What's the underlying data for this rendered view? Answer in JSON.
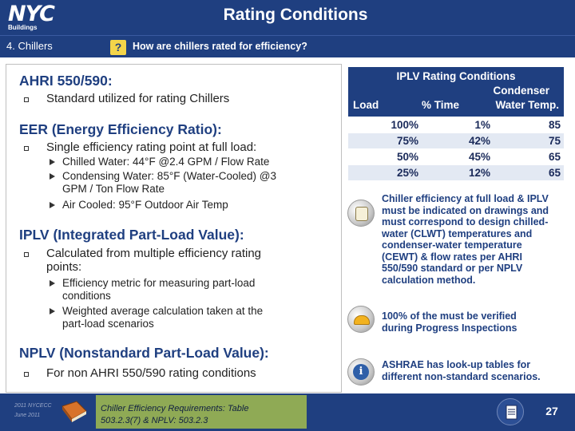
{
  "header": {
    "logo": "NYC",
    "logo_sub": "Buildings",
    "title": "Rating Conditions",
    "section": "4. Chillers",
    "question_mark": "?",
    "question": "How are chillers rated for efficiency?"
  },
  "content": {
    "ahri_heading": "AHRI 550/590:",
    "ahri_bullet": "Standard utilized for rating Chillers",
    "eer_heading": "EER (Energy Efficiency Ratio):",
    "eer_bullet": "Single efficiency rating point at full load:",
    "eer_sub": [
      "Chilled Water: 44°F @2.4 GPM / Flow Rate",
      "Condensing Water: 85°F (Water-Cooled) @3",
      "GPM / Ton Flow Rate",
      "Air Cooled: 95°F Outdoor Air Temp"
    ],
    "iplv_heading": "IPLV (Integrated Part-Load Value):",
    "iplv_bullet_line1": "Calculated from multiple efficiency rating",
    "iplv_bullet_line2": "points:",
    "iplv_sub": [
      "Efficiency metric for measuring part-load",
      "conditions",
      "Weighted average calculation taken at the",
      "part-load scenarios"
    ],
    "nplv_heading": "NPLV (Nonstandard Part-Load Value):",
    "nplv_bullet": "For non AHRI 550/590 rating conditions"
  },
  "table": {
    "title": "IPLV Rating Conditions",
    "col_load": "Load",
    "col_time": "% Time",
    "col_cw_line1": "Condenser",
    "col_cw_line2": "Water Temp.",
    "rows": [
      {
        "load": "100%",
        "time": "1%",
        "temp": "85"
      },
      {
        "load": "75%",
        "time": "42%",
        "temp": "75"
      },
      {
        "load": "50%",
        "time": "45%",
        "temp": "65"
      },
      {
        "load": "25%",
        "time": "12%",
        "temp": "65"
      }
    ],
    "row_colors": [
      "#ffffff",
      "#e3e9f3",
      "#ffffff",
      "#e3e9f3"
    ],
    "header_color": "#1f3f80"
  },
  "notes": [
    {
      "icon": "document-icon",
      "lines": [
        "Chiller efficiency at full load & IPLV",
        "must be indicated on drawings and",
        "must correspond to design chilled-",
        "water (CLWT) temperatures and",
        "condenser-water temperature",
        "(CEWT) & flow rates per AHRI",
        "550/590 standard or per NPLV",
        "calculation method."
      ]
    },
    {
      "icon": "hard-hat-icon",
      "lines": [
        "100% of the must be verified",
        "during Progress Inspections"
      ]
    },
    {
      "icon": "info-icon",
      "lines": [
        "ASHRAE has look-up tables for",
        "different non-standard scenarios."
      ]
    }
  ],
  "footer": {
    "small_line1": "2011 NYCECC",
    "small_line2": "June 2011",
    "ref_line1": "Chiller Efficiency Requirements: Table",
    "ref_line2": "503.2.3(7) & NPLV: 503.2.3",
    "page_number": "27"
  },
  "colors": {
    "brand_blue": "#1f3f80",
    "accent_yellow": "#f4d54a",
    "reference_green": "#8faa55"
  }
}
